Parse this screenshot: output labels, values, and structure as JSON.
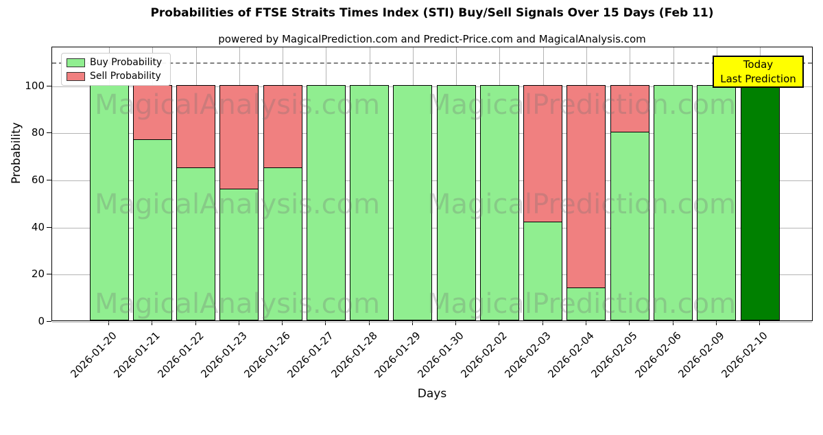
{
  "header": {
    "title": "Probabilities of FTSE Straits Times Index (STI) Buy/Sell Signals Over 15 Days (Feb 11)",
    "subtitle": "powered by MagicalPrediction.com and Predict-Price.com and MagicalAnalysis.com"
  },
  "legend": {
    "position": "upper left",
    "buy_label": "Buy Probability",
    "sell_label": "Sell Probability"
  },
  "annotation_box": {
    "line1": "Today",
    "line2": "Last Prediction",
    "bg_color": "#ffff00",
    "border_color": "#000000"
  },
  "watermarks": [
    "MagicalAnalysis.com",
    "MagicalPrediction.com"
  ],
  "colors": {
    "buy": "#90ee90",
    "sell": "#f08080",
    "today_bar": "#008000",
    "grid": "#b4b4b4",
    "dashed_line": "#7f7f7f",
    "bar_edge": "#000000"
  },
  "chart_data": {
    "type": "bar",
    "stacked": true,
    "title": "Probabilities of FTSE Straits Times Index (STI) Buy/Sell Signals Over 15 Days (Feb 11)",
    "xlabel": "Days",
    "ylabel": "Probability",
    "categories": [
      "2026-01-20",
      "2026-01-21",
      "2026-01-22",
      "2026-01-23",
      "2026-01-26",
      "2026-01-27",
      "2026-01-28",
      "2026-01-29",
      "2026-01-30",
      "2026-02-02",
      "2026-02-03",
      "2026-02-04",
      "2026-02-05",
      "2026-02-06",
      "2026-02-09",
      "2026-02-10"
    ],
    "series": [
      {
        "name": "Buy Probability",
        "color": "#90ee90",
        "values": [
          100,
          77,
          65,
          56,
          65,
          100,
          100,
          100,
          100,
          100,
          42,
          14,
          80,
          100,
          100,
          100
        ]
      },
      {
        "name": "Sell Probability",
        "color": "#f08080",
        "values": [
          0,
          23,
          35,
          44,
          35,
          0,
          0,
          0,
          0,
          0,
          58,
          86,
          20,
          0,
          0,
          0
        ]
      }
    ],
    "today_bar": {
      "index": 15,
      "color": "#008000",
      "label": "Today / Last Prediction"
    },
    "yticks": [
      0,
      20,
      40,
      60,
      80,
      100
    ],
    "ylim": [
      0,
      116.5
    ],
    "dashed_line_y": 110,
    "grid": true,
    "legend_position": "upper left"
  }
}
